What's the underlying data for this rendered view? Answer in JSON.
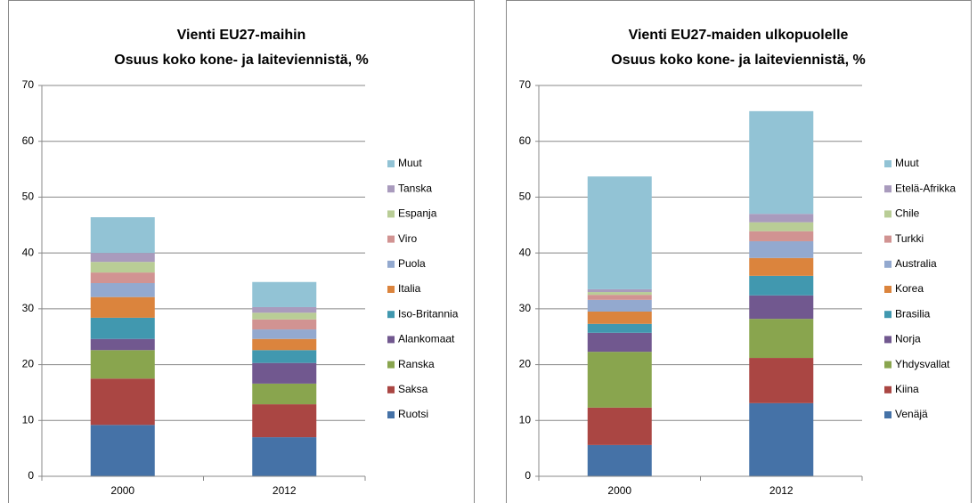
{
  "chart_data": [
    {
      "type": "bar",
      "stacked": true,
      "title": "Vienti EU27-maihin",
      "subtitle": "Osuus koko kone- ja laiteviennistä, %",
      "categories": [
        "2000",
        "2012"
      ],
      "ylim": [
        0,
        70
      ],
      "yticks": [
        0,
        10,
        20,
        30,
        40,
        50,
        60,
        70
      ],
      "grid": true,
      "legend": "right",
      "series": [
        {
          "name": "Ruotsi",
          "color": "#4572a7",
          "values": [
            9.2,
            7.0
          ]
        },
        {
          "name": "Saksa",
          "color": "#aa4643",
          "values": [
            8.3,
            5.9
          ]
        },
        {
          "name": "Ranska",
          "color": "#89a54e",
          "values": [
            5.1,
            3.7
          ]
        },
        {
          "name": "Alankomaat",
          "color": "#71588f",
          "values": [
            2.0,
            3.7
          ]
        },
        {
          "name": "Iso-Britannia",
          "color": "#4198af",
          "values": [
            3.8,
            2.3
          ]
        },
        {
          "name": "Italia",
          "color": "#db843d",
          "values": [
            3.7,
            2.0
          ]
        },
        {
          "name": "Puola",
          "color": "#93a9cf",
          "values": [
            2.5,
            1.7
          ]
        },
        {
          "name": "Viro",
          "color": "#d19392",
          "values": [
            1.9,
            1.8
          ]
        },
        {
          "name": "Espanja",
          "color": "#b9cd96",
          "values": [
            1.9,
            1.2
          ]
        },
        {
          "name": "Tanska",
          "color": "#a99bbd",
          "values": [
            1.6,
            1.0
          ]
        },
        {
          "name": "Muut",
          "color": "#92c3d5",
          "values": [
            6.4,
            4.5
          ]
        }
      ]
    },
    {
      "type": "bar",
      "stacked": true,
      "title": "Vienti EU27-maiden ulkopuolelle",
      "subtitle": "Osuus koko kone- ja laiteviennistä, %",
      "categories": [
        "2000",
        "2012"
      ],
      "ylim": [
        0,
        70
      ],
      "yticks": [
        0,
        10,
        20,
        30,
        40,
        50,
        60,
        70
      ],
      "grid": true,
      "legend": "right",
      "series": [
        {
          "name": "Venäjä",
          "color": "#4572a7",
          "values": [
            5.6,
            13.1
          ]
        },
        {
          "name": "Kiina",
          "color": "#aa4643",
          "values": [
            6.7,
            8.1
          ]
        },
        {
          "name": "Yhdysvallat",
          "color": "#89a54e",
          "values": [
            10.0,
            7.0
          ]
        },
        {
          "name": "Norja",
          "color": "#71588f",
          "values": [
            3.4,
            4.2
          ]
        },
        {
          "name": "Brasilia",
          "color": "#4198af",
          "values": [
            1.6,
            3.5
          ]
        },
        {
          "name": "Korea",
          "color": "#db843d",
          "values": [
            2.2,
            3.2
          ]
        },
        {
          "name": "Australia",
          "color": "#93a9cf",
          "values": [
            2.1,
            3.0
          ]
        },
        {
          "name": "Turkki",
          "color": "#d19392",
          "values": [
            0.9,
            1.8
          ]
        },
        {
          "name": "Chile",
          "color": "#b9cd96",
          "values": [
            0.5,
            1.6
          ]
        },
        {
          "name": "Etelä-Afrikka",
          "color": "#a99bbd",
          "values": [
            0.5,
            1.5
          ]
        },
        {
          "name": "Muut",
          "color": "#92c3d5",
          "values": [
            20.2,
            18.4
          ]
        }
      ]
    }
  ]
}
